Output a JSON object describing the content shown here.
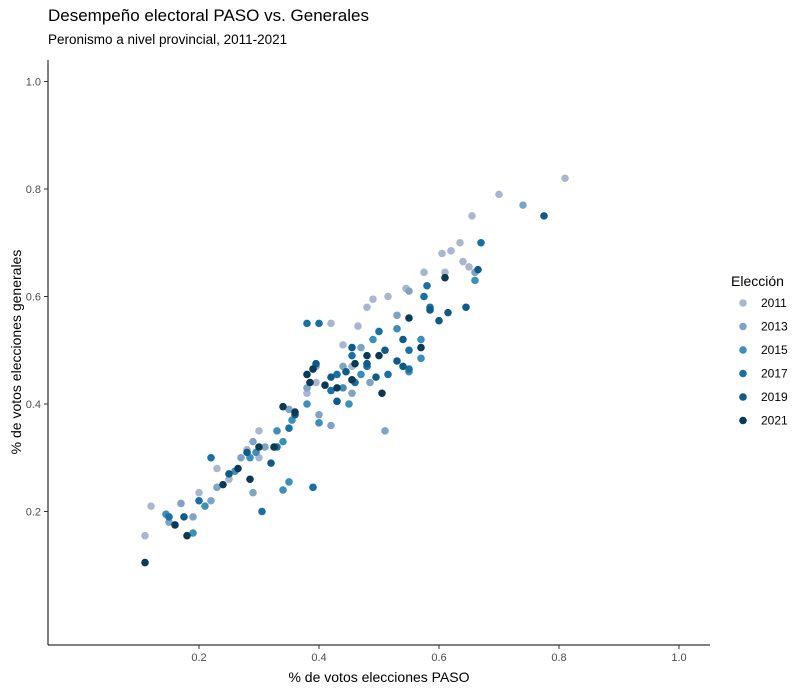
{
  "chart_data": {
    "type": "scatter",
    "title": "Desempeño electoral PASO vs. Generales",
    "subtitle": "Peronismo a nivel provincial, 2011-2021",
    "xlabel": "% de votos elecciones PASO",
    "ylabel": "% de votos elecciones generales",
    "xlim": [
      0,
      1.05
    ],
    "ylim": [
      0,
      1.05
    ],
    "xticks": [
      "0.2",
      "0.4",
      "0.6",
      "0.8",
      "1.0"
    ],
    "yticks": [
      "0.2",
      "0.4",
      "0.6",
      "0.8",
      "1.0"
    ],
    "grid": false,
    "legend": {
      "title": "Elección",
      "placement": "right"
    },
    "series": [
      {
        "name": "2011",
        "color": "#a9b6cf",
        "points": [
          [
            0.81,
            0.82
          ],
          [
            0.7,
            0.79
          ],
          [
            0.655,
            0.75
          ],
          [
            0.635,
            0.7
          ],
          [
            0.62,
            0.685
          ],
          [
            0.605,
            0.68
          ],
          [
            0.64,
            0.665
          ],
          [
            0.65,
            0.655
          ],
          [
            0.61,
            0.645
          ],
          [
            0.575,
            0.645
          ],
          [
            0.545,
            0.615
          ],
          [
            0.515,
            0.6
          ],
          [
            0.49,
            0.595
          ],
          [
            0.48,
            0.58
          ],
          [
            0.465,
            0.545
          ],
          [
            0.42,
            0.55
          ],
          [
            0.44,
            0.51
          ],
          [
            0.455,
            0.47
          ],
          [
            0.38,
            0.42
          ],
          [
            0.395,
            0.44
          ],
          [
            0.3,
            0.35
          ],
          [
            0.28,
            0.315
          ],
          [
            0.23,
            0.28
          ],
          [
            0.2,
            0.235
          ],
          [
            0.11,
            0.155
          ],
          [
            0.12,
            0.21
          ],
          [
            0.3,
            0.3
          ],
          [
            0.25,
            0.26
          ]
        ]
      },
      {
        "name": "2013",
        "color": "#7ea3c5",
        "points": [
          [
            0.74,
            0.77
          ],
          [
            0.66,
            0.645
          ],
          [
            0.55,
            0.61
          ],
          [
            0.53,
            0.565
          ],
          [
            0.47,
            0.505
          ],
          [
            0.44,
            0.47
          ],
          [
            0.38,
            0.43
          ],
          [
            0.42,
            0.36
          ],
          [
            0.4,
            0.38
          ],
          [
            0.35,
            0.39
          ],
          [
            0.51,
            0.35
          ],
          [
            0.31,
            0.32
          ],
          [
            0.27,
            0.3
          ],
          [
            0.29,
            0.235
          ],
          [
            0.23,
            0.245
          ],
          [
            0.19,
            0.19
          ],
          [
            0.15,
            0.18
          ],
          [
            0.17,
            0.215
          ],
          [
            0.29,
            0.33
          ],
          [
            0.22,
            0.22
          ],
          [
            0.395,
            0.47
          ],
          [
            0.485,
            0.44
          ],
          [
            0.455,
            0.42
          ]
        ]
      },
      {
        "name": "2015",
        "color": "#3b8fb8",
        "points": [
          [
            0.66,
            0.63
          ],
          [
            0.57,
            0.52
          ],
          [
            0.55,
            0.46
          ],
          [
            0.57,
            0.485
          ],
          [
            0.47,
            0.455
          ],
          [
            0.45,
            0.4
          ],
          [
            0.4,
            0.365
          ],
          [
            0.355,
            0.37
          ],
          [
            0.33,
            0.35
          ],
          [
            0.34,
            0.33
          ],
          [
            0.26,
            0.275
          ],
          [
            0.35,
            0.255
          ],
          [
            0.34,
            0.24
          ],
          [
            0.285,
            0.3
          ],
          [
            0.19,
            0.16
          ],
          [
            0.145,
            0.195
          ],
          [
            0.21,
            0.21
          ],
          [
            0.49,
            0.52
          ],
          [
            0.53,
            0.54
          ],
          [
            0.44,
            0.43
          ],
          [
            0.38,
            0.4
          ],
          [
            0.295,
            0.31
          ]
        ]
      },
      {
        "name": "2017",
        "color": "#1a70a5",
        "points": [
          [
            0.67,
            0.7
          ],
          [
            0.58,
            0.62
          ],
          [
            0.585,
            0.58
          ],
          [
            0.575,
            0.6
          ],
          [
            0.5,
            0.535
          ],
          [
            0.455,
            0.49
          ],
          [
            0.43,
            0.455
          ],
          [
            0.4,
            0.55
          ],
          [
            0.38,
            0.55
          ],
          [
            0.39,
            0.245
          ],
          [
            0.305,
            0.2
          ],
          [
            0.33,
            0.32
          ],
          [
            0.22,
            0.3
          ],
          [
            0.15,
            0.19
          ],
          [
            0.2,
            0.22
          ],
          [
            0.515,
            0.455
          ],
          [
            0.55,
            0.465
          ],
          [
            0.46,
            0.44
          ],
          [
            0.48,
            0.47
          ],
          [
            0.42,
            0.425
          ],
          [
            0.35,
            0.355
          ],
          [
            0.55,
            0.5
          ]
        ]
      },
      {
        "name": "2019",
        "color": "#0e5a88",
        "points": [
          [
            0.775,
            0.75
          ],
          [
            0.665,
            0.65
          ],
          [
            0.645,
            0.58
          ],
          [
            0.615,
            0.57
          ],
          [
            0.585,
            0.575
          ],
          [
            0.54,
            0.52
          ],
          [
            0.53,
            0.48
          ],
          [
            0.51,
            0.5
          ],
          [
            0.495,
            0.45
          ],
          [
            0.48,
            0.475
          ],
          [
            0.445,
            0.46
          ],
          [
            0.42,
            0.45
          ],
          [
            0.43,
            0.405
          ],
          [
            0.395,
            0.475
          ],
          [
            0.36,
            0.38
          ],
          [
            0.32,
            0.29
          ],
          [
            0.28,
            0.31
          ],
          [
            0.175,
            0.19
          ],
          [
            0.25,
            0.27
          ],
          [
            0.54,
            0.47
          ],
          [
            0.6,
            0.555
          ],
          [
            0.455,
            0.505
          ]
        ]
      },
      {
        "name": "2021",
        "color": "#0b3a57",
        "points": [
          [
            0.61,
            0.635
          ],
          [
            0.55,
            0.56
          ],
          [
            0.57,
            0.505
          ],
          [
            0.505,
            0.42
          ],
          [
            0.5,
            0.49
          ],
          [
            0.48,
            0.49
          ],
          [
            0.46,
            0.475
          ],
          [
            0.43,
            0.43
          ],
          [
            0.385,
            0.44
          ],
          [
            0.38,
            0.455
          ],
          [
            0.39,
            0.465
          ],
          [
            0.36,
            0.385
          ],
          [
            0.34,
            0.395
          ],
          [
            0.325,
            0.32
          ],
          [
            0.3,
            0.32
          ],
          [
            0.265,
            0.28
          ],
          [
            0.285,
            0.26
          ],
          [
            0.24,
            0.25
          ],
          [
            0.18,
            0.155
          ],
          [
            0.11,
            0.105
          ],
          [
            0.16,
            0.175
          ],
          [
            0.41,
            0.435
          ],
          [
            0.455,
            0.445
          ]
        ]
      }
    ]
  }
}
